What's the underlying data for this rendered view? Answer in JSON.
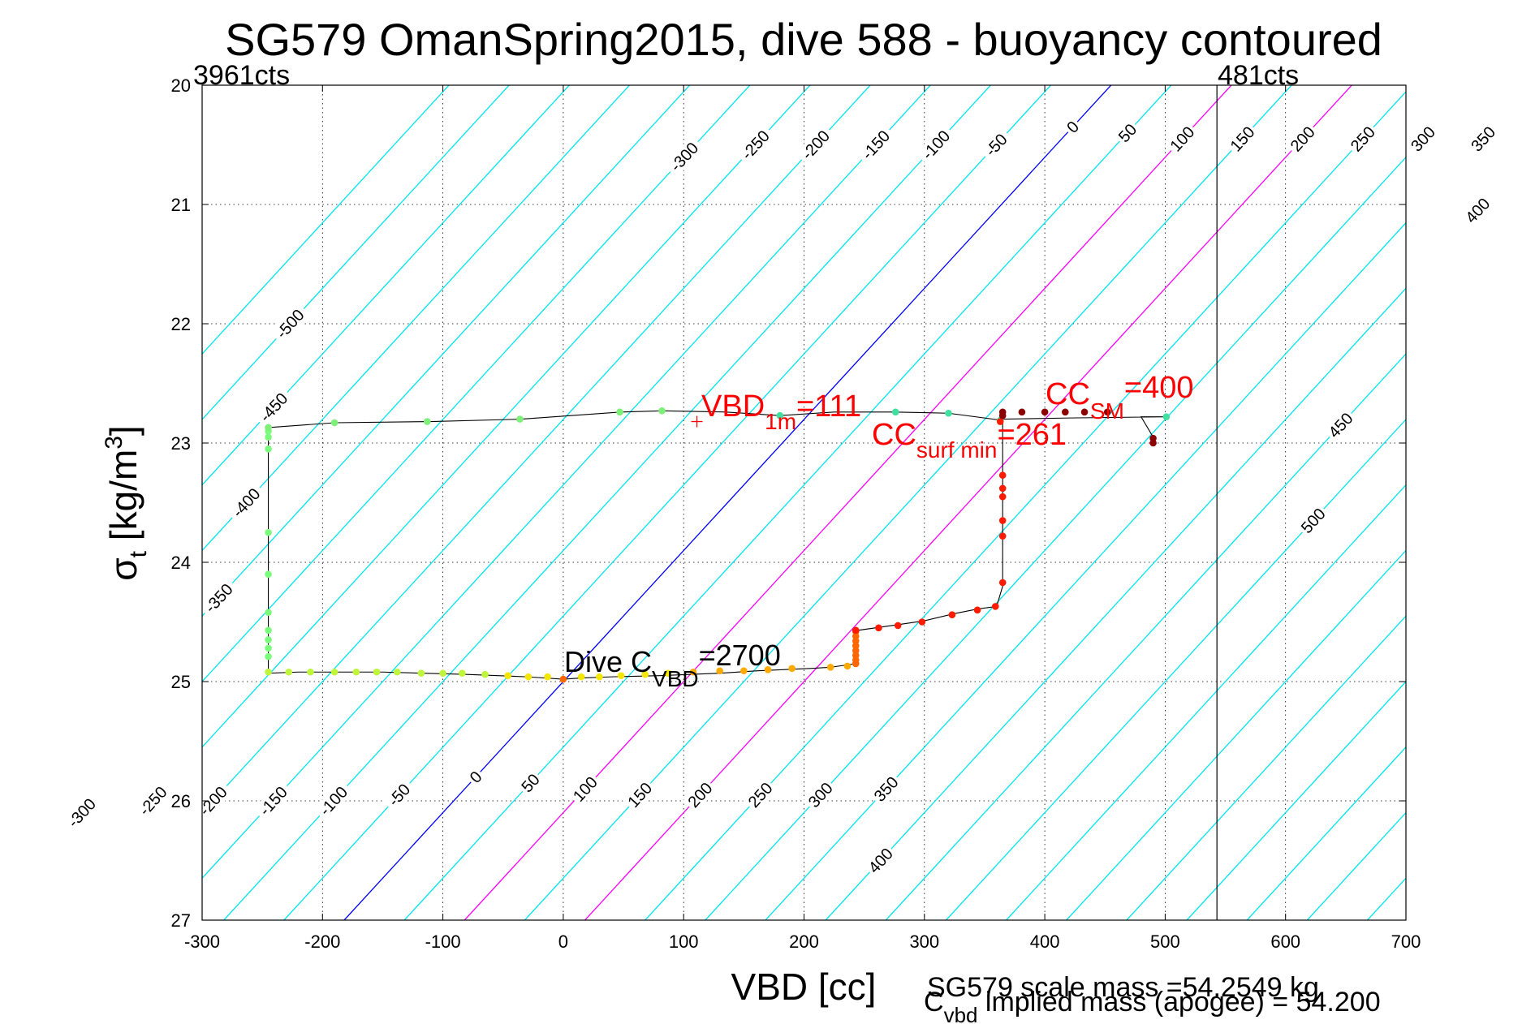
{
  "chart_data": {
    "type": "scatter",
    "title": "SG579 OmanSpring2015, dive 588 - buoyancy contoured",
    "xlabel": "VBD [cc]",
    "ylabel": "σ [kg/m³]",
    "ylabel_base": "σ",
    "ylabel_sub": "t",
    "ylabel_rest": " [kg/m",
    "ylabel_sup": "3",
    "ylabel_end": "]",
    "xlim": [
      -300,
      700
    ],
    "ylim": [
      20,
      27
    ],
    "y_reversed": true,
    "grid": true,
    "x_ticks": [
      -300,
      -200,
      -100,
      0,
      100,
      200,
      300,
      400,
      500,
      600,
      700
    ],
    "x_tick_labels": [
      "-300",
      "-200",
      "-100",
      "0",
      "100",
      "200",
      "300",
      "400",
      "500",
      "600",
      "700"
    ],
    "y_ticks": [
      20,
      21,
      22,
      23,
      24,
      25,
      26,
      27
    ],
    "y_tick_labels": [
      "20",
      "21",
      "22",
      "23",
      "24",
      "25",
      "26",
      "27"
    ],
    "contour_slope_cc_per_sigma": -91,
    "contour_step": 50,
    "contour_levels": [
      -550,
      -500,
      -450,
      -400,
      -350,
      -300,
      -250,
      -200,
      -150,
      -100,
      -50,
      0,
      50,
      100,
      150,
      200,
      250,
      300,
      350,
      400,
      450,
      500,
      550,
      600,
      650,
      700,
      750,
      800,
      850,
      900
    ],
    "special_contours": [
      {
        "level": 0,
        "color": "#0000ff"
      },
      {
        "level": 100,
        "color": "#ff00ff"
      },
      {
        "level": 200,
        "color": "#ff00ff"
      }
    ],
    "contour_color": "#00e5ee",
    "contour_labels_top": [
      {
        "text": "-500",
        "level": -500,
        "y": 22.0
      },
      {
        "text": "-450",
        "level": -450,
        "y": 22.7
      },
      {
        "text": "-400",
        "level": -400,
        "y": 23.5
      },
      {
        "text": "-350",
        "level": -350,
        "y": 24.3
      },
      {
        "text": "-300",
        "level": -300,
        "y": 20.6
      },
      {
        "text": "-250",
        "level": -250,
        "y": 20.5
      },
      {
        "text": "-200",
        "level": -200,
        "y": 20.5
      },
      {
        "text": "-150",
        "level": -150,
        "y": 20.5
      },
      {
        "text": "-100",
        "level": -100,
        "y": 20.5
      },
      {
        "text": "-50",
        "level": -50,
        "y": 20.5
      },
      {
        "text": "0",
        "level": 0,
        "y": 20.35
      },
      {
        "text": "50",
        "level": 50,
        "y": 20.4
      },
      {
        "text": "100",
        "level": 100,
        "y": 20.45
      },
      {
        "text": "150",
        "level": 150,
        "y": 20.45
      },
      {
        "text": "200",
        "level": 200,
        "y": 20.45
      },
      {
        "text": "250",
        "level": 250,
        "y": 20.45
      },
      {
        "text": "300",
        "level": 300,
        "y": 20.45
      },
      {
        "text": "350",
        "level": 350,
        "y": 20.45
      },
      {
        "text": "400",
        "level": 400,
        "y": 21.05
      },
      {
        "text": "450",
        "level": 450,
        "y": 22.85
      },
      {
        "text": "500",
        "level": 500,
        "y": 23.65
      }
    ],
    "contour_labels_bottom": [
      {
        "text": "-300",
        "level": -300,
        "y": 26.1
      },
      {
        "text": "-250",
        "level": -250,
        "y": 26.0
      },
      {
        "text": "-200",
        "level": -200,
        "y": 26.0
      },
      {
        "text": "-150",
        "level": -150,
        "y": 26.0
      },
      {
        "text": "-100",
        "level": -100,
        "y": 26.0
      },
      {
        "text": "-50",
        "level": -50,
        "y": 25.95
      },
      {
        "text": "0",
        "level": 0,
        "y": 25.8
      },
      {
        "text": "50",
        "level": 50,
        "y": 25.85
      },
      {
        "text": "100",
        "level": 100,
        "y": 25.9
      },
      {
        "text": "150",
        "level": 150,
        "y": 25.95
      },
      {
        "text": "200",
        "level": 200,
        "y": 25.95
      },
      {
        "text": "250",
        "level": 250,
        "y": 25.95
      },
      {
        "text": "300",
        "level": 300,
        "y": 25.95
      },
      {
        "text": "350",
        "level": 350,
        "y": 25.9
      },
      {
        "text": "400",
        "level": 400,
        "y": 26.5
      }
    ],
    "vertical_line_x": 543,
    "counts_left": "3961cts",
    "counts_right": "481cts",
    "trace": {
      "color": "#000000",
      "points": [
        [
          -245,
          22.87
        ],
        [
          -190,
          22.83
        ],
        [
          -110,
          22.82
        ],
        [
          -35,
          22.8
        ],
        [
          48,
          22.74
        ],
        [
          82,
          22.73
        ],
        [
          135,
          22.74
        ],
        [
          180,
          22.77
        ],
        [
          225,
          22.74
        ],
        [
          275,
          22.74
        ],
        [
          320,
          22.75
        ],
        [
          365,
          22.81
        ],
        [
          365,
          24.2
        ],
        [
          360,
          24.37
        ],
        [
          345,
          24.39
        ],
        [
          325,
          24.43
        ],
        [
          300,
          24.49
        ],
        [
          280,
          24.52
        ],
        [
          245,
          24.57
        ],
        [
          243,
          24.85
        ],
        [
          222,
          24.88
        ],
        [
          205,
          24.89
        ],
        [
          160,
          24.91
        ],
        [
          130,
          24.93
        ],
        [
          80,
          24.95
        ],
        [
          40,
          24.96
        ],
        [
          15,
          24.97
        ],
        [
          0,
          24.98
        ],
        [
          -30,
          24.96
        ],
        [
          -80,
          24.94
        ],
        [
          -150,
          24.92
        ],
        [
          -220,
          24.92
        ],
        [
          -245,
          24.93
        ],
        [
          -245,
          24.6
        ],
        [
          -245,
          24.1
        ],
        [
          -245,
          23.7
        ],
        [
          -245,
          23.0
        ],
        [
          -245,
          22.87
        ]
      ]
    },
    "surface_trace": {
      "points": [
        [
          365,
          22.8
        ],
        [
          420,
          22.79
        ],
        [
          500,
          22.78
        ],
        [
          480,
          22.78
        ],
        [
          490,
          22.95
        ],
        [
          490,
          23.0
        ]
      ]
    },
    "series": [
      {
        "name": "bottom-light-green",
        "color": "#7cfc7c",
        "points": [
          [
            -245,
            22.9
          ],
          [
            -245,
            22.95
          ],
          [
            -245,
            23.05
          ],
          [
            -245,
            23.75
          ],
          [
            -245,
            24.1
          ],
          [
            -245,
            24.42
          ],
          [
            -245,
            24.57
          ],
          [
            -245,
            24.65
          ],
          [
            -245,
            24.72
          ],
          [
            -245,
            24.79
          ]
        ]
      },
      {
        "name": "top-light-green",
        "color": "#7ef07a",
        "points": [
          [
            -245,
            22.87
          ],
          [
            -190,
            22.83
          ],
          [
            -113,
            22.82
          ],
          [
            -36,
            22.8
          ],
          [
            47,
            22.74
          ],
          [
            82,
            22.73
          ]
        ]
      },
      {
        "name": "top-cyan-green",
        "color": "#40e0a0",
        "points": [
          [
            180,
            22.77
          ],
          [
            276,
            22.74
          ],
          [
            320,
            22.75
          ],
          [
            363,
            22.81
          ],
          [
            501,
            22.78
          ]
        ]
      },
      {
        "name": "yellow-green",
        "color": "#bff53a",
        "points": [
          [
            -245,
            24.92
          ],
          [
            -228,
            24.92
          ],
          [
            -210,
            24.92
          ],
          [
            -190,
            24.92
          ],
          [
            -172,
            24.92
          ],
          [
            -155,
            24.92
          ],
          [
            -138,
            24.92
          ],
          [
            -118,
            24.93
          ],
          [
            -100,
            24.93
          ],
          [
            -84,
            24.93
          ],
          [
            -65,
            24.94
          ]
        ]
      },
      {
        "name": "yellow",
        "color": "#f5e600",
        "points": [
          [
            -46,
            24.95
          ],
          [
            -29,
            24.96
          ],
          [
            -13,
            24.96
          ],
          [
            15,
            24.96
          ],
          [
            30,
            24.96
          ],
          [
            48,
            24.95
          ],
          [
            68,
            24.94
          ],
          [
            87,
            24.93
          ]
        ]
      },
      {
        "name": "orange",
        "color": "#ffaa00",
        "points": [
          [
            108,
            24.92
          ],
          [
            130,
            24.91
          ],
          [
            150,
            24.91
          ],
          [
            170,
            24.9
          ],
          [
            190,
            24.89
          ],
          [
            222,
            24.88
          ],
          [
            236,
            24.87
          ]
        ]
      },
      {
        "name": "dark-orange",
        "color": "#ff6600",
        "points": [
          [
            0,
            24.98
          ],
          [
            243,
            24.58
          ],
          [
            243,
            24.62
          ],
          [
            243,
            24.66
          ],
          [
            243,
            24.7
          ],
          [
            243,
            24.74
          ],
          [
            243,
            24.78
          ],
          [
            243,
            24.82
          ],
          [
            243,
            24.85
          ]
        ]
      },
      {
        "name": "red",
        "color": "#ff1a00",
        "points": [
          [
            243,
            24.57
          ],
          [
            262,
            24.55
          ],
          [
            278,
            24.53
          ],
          [
            298,
            24.5
          ],
          [
            323,
            24.44
          ],
          [
            344,
            24.4
          ],
          [
            359,
            24.37
          ],
          [
            365,
            24.17
          ],
          [
            365,
            23.78
          ],
          [
            365,
            23.65
          ],
          [
            365,
            23.45
          ],
          [
            365,
            23.38
          ],
          [
            365,
            23.27
          ],
          [
            363,
            22.82
          ]
        ]
      },
      {
        "name": "dark-red",
        "color": "#8b0000",
        "points": [
          [
            365,
            22.74
          ],
          [
            365,
            22.77
          ],
          [
            381,
            22.74
          ],
          [
            400,
            22.74
          ],
          [
            417,
            22.74
          ],
          [
            433,
            22.74
          ],
          [
            452,
            22.74
          ],
          [
            490,
            22.96
          ],
          [
            490,
            23.0
          ]
        ]
      }
    ],
    "markers": [
      {
        "name": "vbd-1m-marker",
        "x": 111,
        "y": 22.82,
        "color": "#ff0000",
        "symbol": "+"
      }
    ],
    "annotations": {
      "vbd1m": {
        "base": "VBD",
        "sub": "1m",
        "rest": "=111"
      },
      "cc_surf": {
        "base": "CC",
        "sub": "surf min",
        "rest": "=261"
      },
      "cc_sm": {
        "base": "CC",
        "sub": "SM",
        "rest": "=400"
      },
      "dive_c": {
        "base": "Dive C",
        "sub": "VBD",
        "rest": "=2700"
      }
    },
    "footer": {
      "scale_mass": "SG579 scale mass =54.2549 kg",
      "c_vbd_base": "C",
      "c_vbd_sub": "vbd",
      "c_vbd_rest": " implied mass (apogee) = 54.200"
    }
  },
  "colors": {
    "contour": "#00e5ee",
    "zero_contour": "#0000ff",
    "magenta_contour": "#ff00ff",
    "annotation_red": "#ff0000"
  }
}
